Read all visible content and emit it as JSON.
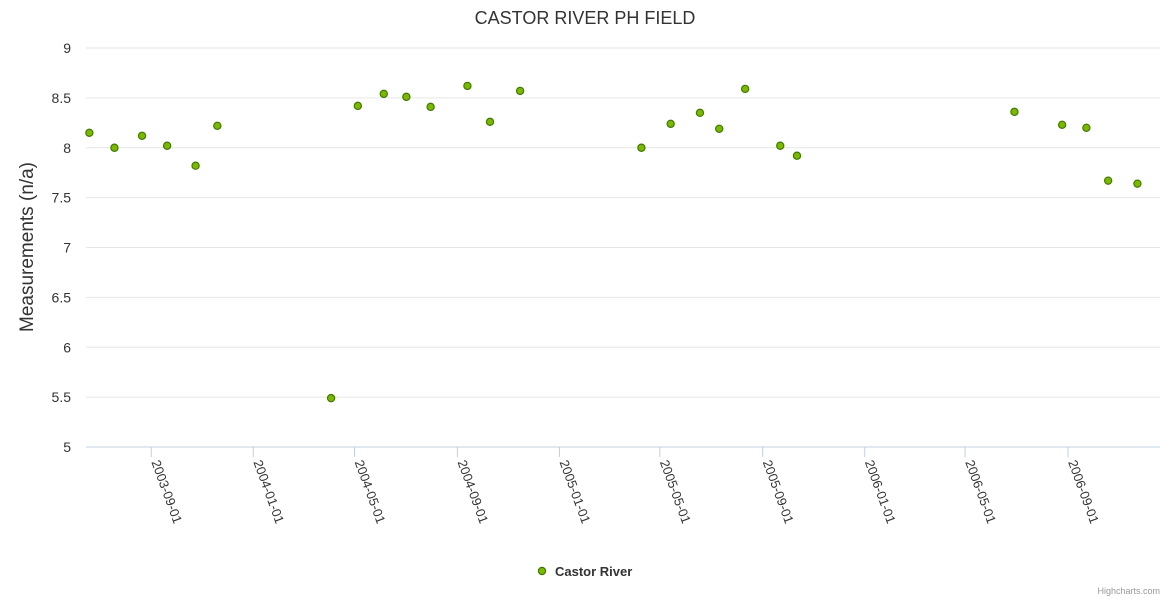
{
  "chart_data": {
    "type": "scatter",
    "title": "CASTOR RIVER PH FIELD",
    "ylabel": "Measurements (n/a)",
    "xlabel": "",
    "ylim": [
      5,
      9
    ],
    "yticks": [
      5,
      5.5,
      6,
      6.5,
      7,
      7.5,
      8,
      8.5,
      9
    ],
    "xlim": [
      "2003-06-15",
      "2006-12-20"
    ],
    "xticks": [
      "2003-09-01",
      "2004-01-01",
      "2004-05-01",
      "2004-09-01",
      "2005-01-01",
      "2005-05-01",
      "2005-09-01",
      "2006-01-01",
      "2006-05-01",
      "2006-09-01"
    ],
    "grid": "horizontal",
    "legend": "bottom-center",
    "series": [
      {
        "name": "Castor River",
        "color": "#7cb800",
        "edge_color": "#3f7a00",
        "points": [
          {
            "x": "2003-06-19",
            "y": 8.15
          },
          {
            "x": "2003-07-19",
            "y": 8.0
          },
          {
            "x": "2003-08-21",
            "y": 8.12
          },
          {
            "x": "2003-09-20",
            "y": 8.02
          },
          {
            "x": "2003-10-24",
            "y": 7.82
          },
          {
            "x": "2003-11-19",
            "y": 8.22
          },
          {
            "x": "2004-04-03",
            "y": 5.49
          },
          {
            "x": "2004-05-05",
            "y": 8.42
          },
          {
            "x": "2004-06-05",
            "y": 8.54
          },
          {
            "x": "2004-07-02",
            "y": 8.51
          },
          {
            "x": "2004-07-31",
            "y": 8.41
          },
          {
            "x": "2004-09-13",
            "y": 8.62
          },
          {
            "x": "2004-10-10",
            "y": 8.26
          },
          {
            "x": "2004-11-15",
            "y": 8.57
          },
          {
            "x": "2005-04-09",
            "y": 8.0
          },
          {
            "x": "2005-05-14",
            "y": 8.24
          },
          {
            "x": "2005-06-18",
            "y": 8.35
          },
          {
            "x": "2005-07-11",
            "y": 8.19
          },
          {
            "x": "2005-08-11",
            "y": 8.59
          },
          {
            "x": "2005-09-22",
            "y": 8.02
          },
          {
            "x": "2005-10-12",
            "y": 7.92
          },
          {
            "x": "2006-06-29",
            "y": 8.36
          },
          {
            "x": "2006-08-25",
            "y": 8.23
          },
          {
            "x": "2006-09-23",
            "y": 8.2
          },
          {
            "x": "2006-10-19",
            "y": 7.67
          },
          {
            "x": "2006-11-23",
            "y": 7.64
          }
        ]
      }
    ]
  },
  "credits": "Highcharts.com"
}
